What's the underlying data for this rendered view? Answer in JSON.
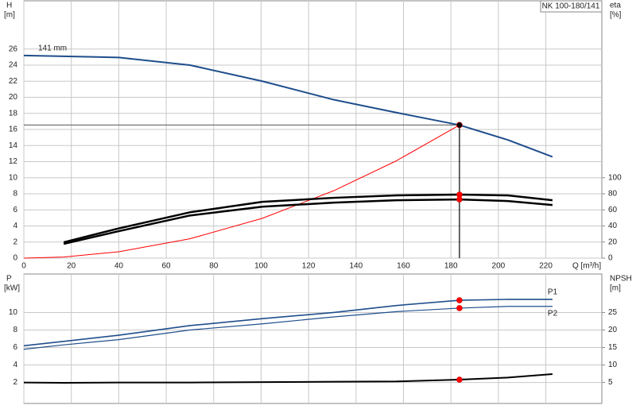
{
  "chart_data": [
    {
      "type": "line",
      "title": "NK 100-180/141",
      "xlabel": "Q [m³/h]",
      "ylabel": "H",
      "yunit": "[m]",
      "y2label": "eta",
      "y2unit": "[%]",
      "x": [
        0,
        16.8,
        40,
        70,
        100.5,
        130.6,
        157,
        183.6,
        204,
        222.8
      ],
      "xlim": [
        0,
        243.6
      ],
      "xticks": [
        0,
        20,
        40,
        60,
        80,
        100,
        120,
        140,
        160,
        180,
        200,
        220
      ],
      "ylim": [
        0,
        32
      ],
      "yticks": [
        0,
        2,
        4,
        6,
        8,
        10,
        12,
        14,
        16,
        18,
        20,
        22,
        24,
        26
      ],
      "y2lim": [
        0,
        320
      ],
      "y2ticks": [
        0,
        20,
        40,
        60,
        80,
        100
      ],
      "grid": true,
      "duty_point": {
        "x": 183.6,
        "y": 16.55
      },
      "series": [
        {
          "name": "141 mm",
          "color": "#1f4e8c",
          "marker_color": "#ffcc00",
          "values": [
            25.2,
            25.1,
            24.95,
            24.0,
            22.0,
            19.7,
            18.1,
            16.55,
            14.7,
            12.6
          ]
        },
        {
          "color": "#ff0000",
          "values": [
            0,
            0.14,
            0.79,
            2.41,
            4.95,
            8.38,
            12.1,
            16.55,
            null,
            null
          ]
        },
        {
          "color": "#000000",
          "axis": "y2",
          "marker_color": "#ff0000",
          "values": [
            null,
            19.7,
            37,
            57,
            70,
            75,
            78,
            79,
            78,
            72
          ]
        },
        {
          "color": "#000000",
          "axis": "y2",
          "marker_color": "#ff0000",
          "values": [
            null,
            17.7,
            33.5,
            53,
            64,
            69,
            72,
            73,
            71,
            66
          ]
        }
      ]
    },
    {
      "type": "line",
      "ylabel": "P",
      "yunit": "[kW]",
      "y2label": "NPSH",
      "y2unit": "[m]",
      "x": [
        0,
        16.8,
        40,
        70,
        100.5,
        130.6,
        157,
        183.6,
        204,
        222.8
      ],
      "xlim": [
        0,
        243.6
      ],
      "xticks": [
        0,
        20,
        40,
        60,
        80,
        100,
        120,
        140,
        160,
        180,
        200,
        220
      ],
      "ylim": [
        -0.4,
        14.4
      ],
      "yticks": [
        2,
        4,
        6,
        8,
        10
      ],
      "y2lim": [
        -1,
        36
      ],
      "y2ticks": [
        5,
        10,
        15,
        20,
        25
      ],
      "grid": true,
      "duty_point": {
        "x": 183.6
      },
      "series": [
        {
          "name": "P1",
          "color": "#1f4e8c",
          "marker_color": "#ff0000",
          "values": [
            6.2,
            6.7,
            7.4,
            8.5,
            9.3,
            10.0,
            10.8,
            11.4,
            11.5,
            11.5
          ]
        },
        {
          "name": "P2",
          "color": "#1f4e8c",
          "marker_color": "#ff0000",
          "values": [
            5.8,
            6.3,
            6.9,
            8.0,
            8.7,
            9.5,
            10.1,
            10.5,
            10.7,
            10.7
          ]
        },
        {
          "color": "#000000",
          "axis": "y2",
          "marker_color": "#ff0000",
          "values": [
            5,
            4.9,
            5.0,
            5.0,
            5.1,
            5.2,
            5.3,
            5.8,
            6.4,
            7.4
          ]
        }
      ]
    }
  ]
}
